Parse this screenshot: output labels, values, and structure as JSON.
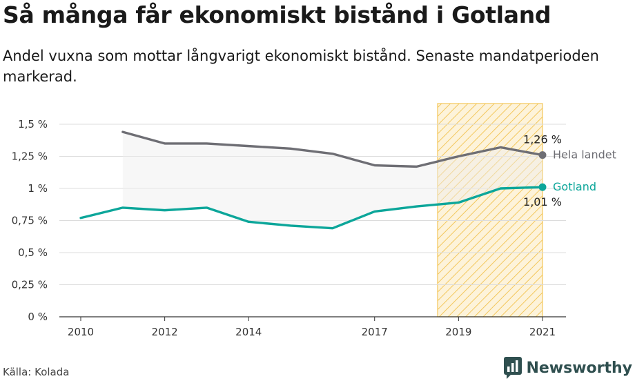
{
  "title": "Så många får ekonomiskt bistånd i Gotland",
  "subtitle": "Andel vuxna som mottar långvarigt ekonomiskt bistånd. Senaste mandatperioden markerad.",
  "source": "Källa: Kolada",
  "brand": "Newsworthy",
  "colors": {
    "national": "#6e6e74",
    "gotland": "#0ca69a",
    "highlight": "#f3c75c",
    "brand": "#2f4f4f"
  },
  "chart_data": {
    "type": "line",
    "x_ticks": [
      2010,
      2012,
      2014,
      2017,
      2019,
      2021
    ],
    "xlim": [
      2010,
      2021
    ],
    "ylim": [
      0,
      1.5
    ],
    "y_ticks": [
      0,
      0.25,
      0.5,
      0.75,
      1,
      1.25,
      1.5
    ],
    "y_tick_labels": [
      "0 %",
      "0,25 %",
      "0,5 %",
      "0,75 %",
      "1 %",
      "1,25 %",
      "1,5 %"
    ],
    "highlight_period": [
      2019,
      2021
    ],
    "series": [
      {
        "name": "Hela landet",
        "color": "#6e6e74",
        "x": [
          2011,
          2012,
          2013,
          2014,
          2015,
          2016,
          2017,
          2018,
          2019,
          2020,
          2021
        ],
        "values": [
          1.44,
          1.35,
          1.35,
          1.33,
          1.31,
          1.27,
          1.18,
          1.17,
          1.25,
          1.32,
          1.26
        ],
        "end_value_label": "1,26 %"
      },
      {
        "name": "Gotland",
        "color": "#0ca69a",
        "x": [
          2010,
          2011,
          2012,
          2013,
          2014,
          2015,
          2016,
          2017,
          2018,
          2019,
          2020,
          2021
        ],
        "values": [
          0.77,
          0.85,
          0.83,
          0.85,
          0.74,
          0.71,
          0.69,
          0.82,
          0.86,
          0.89,
          1.0,
          1.01
        ],
        "end_value_label": "1,01 %"
      }
    ]
  }
}
